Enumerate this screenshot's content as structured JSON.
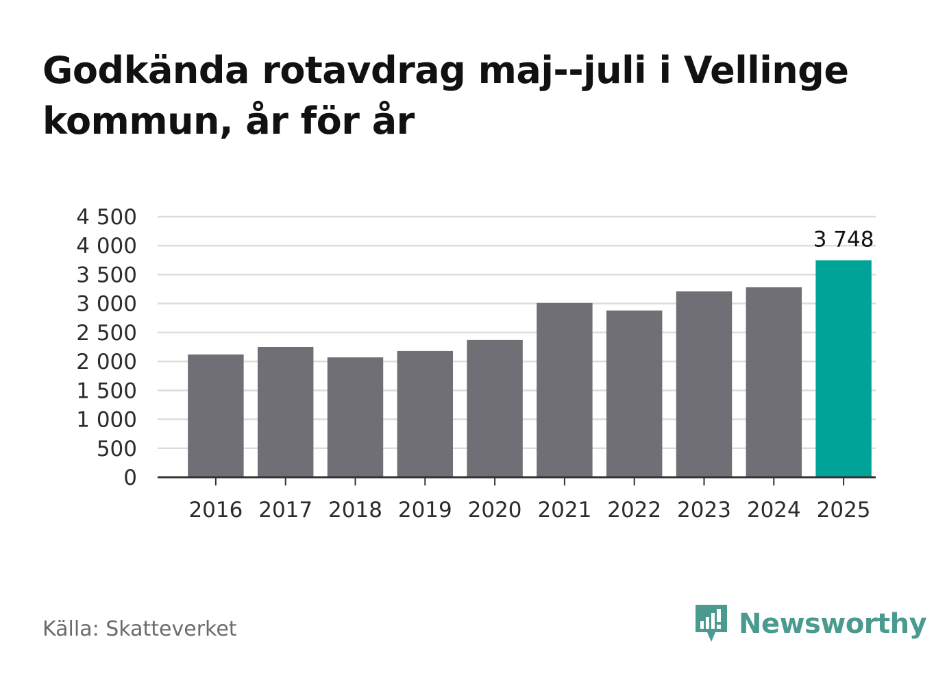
{
  "chart_data": {
    "type": "bar",
    "title": "Godkända rotavdrag maj--juli i Vellinge kommun, år för år",
    "categories": [
      "2016",
      "2017",
      "2018",
      "2019",
      "2020",
      "2021",
      "2022",
      "2023",
      "2024",
      "2025"
    ],
    "values": [
      2120,
      2250,
      2070,
      2180,
      2370,
      3010,
      2880,
      3210,
      3280,
      3748
    ],
    "highlight_index": 9,
    "value_labels": [
      {
        "index": 9,
        "text": "3 748"
      }
    ],
    "y_ticks": [
      0,
      500,
      1000,
      1500,
      2000,
      2500,
      3000,
      3500,
      4000,
      4500
    ],
    "y_tick_labels": [
      "0",
      "500",
      "1 000",
      "1 500",
      "2 000",
      "2 500",
      "3 000",
      "3 500",
      "4 000",
      "4 500"
    ],
    "ylim": [
      0,
      4500
    ],
    "xlabel": "",
    "ylabel": "",
    "grid": true,
    "colors": {
      "bar": "#706f75",
      "highlight": "#00a397",
      "grid": "#dcdcdc",
      "axis": "#333333"
    }
  },
  "source": "Källa: Skatteverket",
  "brand": {
    "name": "Newsworthy",
    "icon": "newsworthy-logo-icon",
    "color": "#4a9a90"
  }
}
